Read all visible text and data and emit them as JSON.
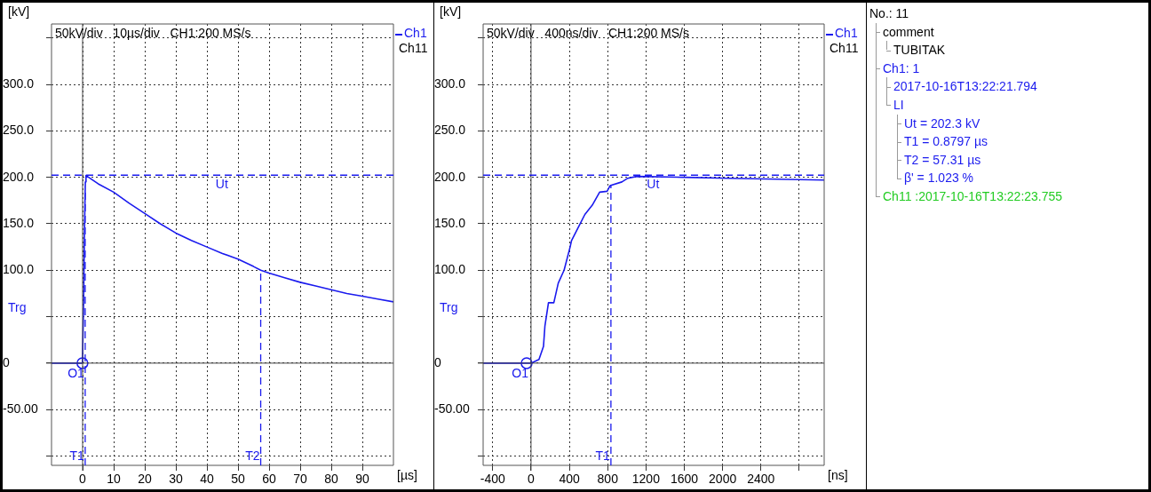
{
  "chart_data": [
    {
      "type": "line",
      "subtitle": "50kV/div   10µs/div   CH1:200 MS/s",
      "xlabel": "[µs]",
      "ylabel": "[kV]",
      "xlim": [
        -10,
        100
      ],
      "xticks": [
        0,
        10,
        20,
        30,
        40,
        50,
        60,
        70,
        80,
        90
      ],
      "ylim": [
        -110,
        365
      ],
      "yticks": [
        {
          "value": -100,
          "label": null
        },
        {
          "value": -50,
          "label": "-50.00"
        },
        0,
        {
          "value": 50,
          "label": null
        },
        {
          "value": 100,
          "label": "100.0"
        },
        {
          "value": 150,
          "label": "150.0"
        },
        {
          "value": 200,
          "label": "200.0"
        },
        {
          "value": 250,
          "label": "250.0"
        },
        {
          "value": 300,
          "label": "300.0"
        },
        {
          "value": 350,
          "label": null
        }
      ],
      "grid": true,
      "legend": "right",
      "marker": "none",
      "line_style": "solid",
      "series": [
        {
          "name": "Ch1",
          "color": "#1a1aee",
          "x": [
            -10,
            -1,
            -0.05,
            0.3,
            0.6,
            0.88,
            1.1,
            5,
            10,
            15,
            20,
            25,
            30,
            35,
            40,
            45,
            50,
            55,
            57.3,
            60,
            65,
            70,
            75,
            80,
            85,
            90,
            95,
            100
          ],
          "values": [
            0,
            0,
            0,
            60,
            140,
            195,
            202,
            193,
            184,
            172,
            161,
            150,
            140,
            132,
            125,
            118,
            112,
            104,
            100,
            97,
            92,
            87,
            83,
            79,
            75,
            72,
            69,
            66
          ]
        },
        {
          "type": "scatter",
          "color": "#1a1aee",
          "marker": "circle",
          "x": [
            -0.05
          ],
          "values": [
            0
          ]
        }
      ],
      "ref_lines": [
        {
          "axis": "y",
          "value": 202.3,
          "label": "Ut",
          "line_style": "dashed",
          "color": "#1a1aee"
        },
        {
          "axis": "x",
          "value": 0.83,
          "label": "T1",
          "line_style": "dashed",
          "color": "#1a1aee"
        },
        {
          "axis": "x",
          "value": 57.3,
          "label": "T2",
          "line_style": "dashed",
          "color": "#1a1aee"
        }
      ],
      "annotations": [
        "Ch11",
        "Trg",
        {
          "text": "O1",
          "x": -0.05,
          "y": 0
        }
      ]
    },
    {
      "type": "line",
      "subtitle": "50kV/div   400ns/div   CH1:200 MS/s",
      "xlabel": "[ns]",
      "ylabel": "[kV]",
      "xlim": [
        -500,
        3060
      ],
      "xticks": [
        -400,
        0,
        400,
        800,
        1200,
        1600,
        2000,
        2400,
        {
          "value": 2800,
          "label": null
        }
      ],
      "ylim": [
        -110,
        365
      ],
      "yticks": [
        {
          "value": -100,
          "label": null
        },
        {
          "value": -50,
          "label": "-50.00"
        },
        0,
        {
          "value": 50,
          "label": null
        },
        {
          "value": 100,
          "label": "100.0"
        },
        {
          "value": 150,
          "label": "150.0"
        },
        {
          "value": 200,
          "label": "200.0"
        },
        {
          "value": 250,
          "label": "250.0"
        },
        {
          "value": 300,
          "label": "300.0"
        },
        {
          "value": 350,
          "label": null
        }
      ],
      "grid": true,
      "legend": "right",
      "marker": "none",
      "line_style": "solid",
      "series": [
        {
          "name": "Ch1",
          "color": "#1a1aee",
          "x": [
            -500,
            -46,
            0,
            83,
            130,
            145,
            182,
            238,
            284,
            345,
            408,
            423,
            562,
            639,
            716,
            794,
            825,
            948,
            1010,
            1103,
            1597,
            2060,
            3060
          ],
          "values": [
            0,
            0,
            0,
            4,
            18,
            40,
            65,
            65,
            86,
            100,
            125,
            132,
            160,
            170,
            184,
            185,
            191,
            195,
            199,
            201,
            200,
            199,
            197
          ]
        },
        {
          "type": "scatter",
          "color": "#1a1aee",
          "marker": "circle",
          "x": [
            -46
          ],
          "values": [
            0
          ]
        }
      ],
      "ref_lines": [
        {
          "axis": "y",
          "value": 202.3,
          "label": "Ut",
          "line_style": "dashed",
          "color": "#1a1aee"
        },
        {
          "axis": "x",
          "value": 834,
          "label": "T1",
          "line_style": "dashed",
          "color": "#1a1aee"
        }
      ],
      "annotations": [
        "Ch11",
        "Trg",
        {
          "text": "O1",
          "x": -46,
          "y": 0
        }
      ]
    },
    {
      "type": "other",
      "annotations": [
        "No.: 11",
        "comment",
        "TUBITAK",
        "Ch1: 1",
        "2017-10-16T13:22:21.794",
        "LI",
        "Ut = 202.3 kV",
        "T1 = 0.8797 µs",
        "T2 = 57.31 µs",
        "β' = 1.023 %",
        "Ch11 :2017-10-16T13:22:23.755"
      ]
    }
  ]
}
